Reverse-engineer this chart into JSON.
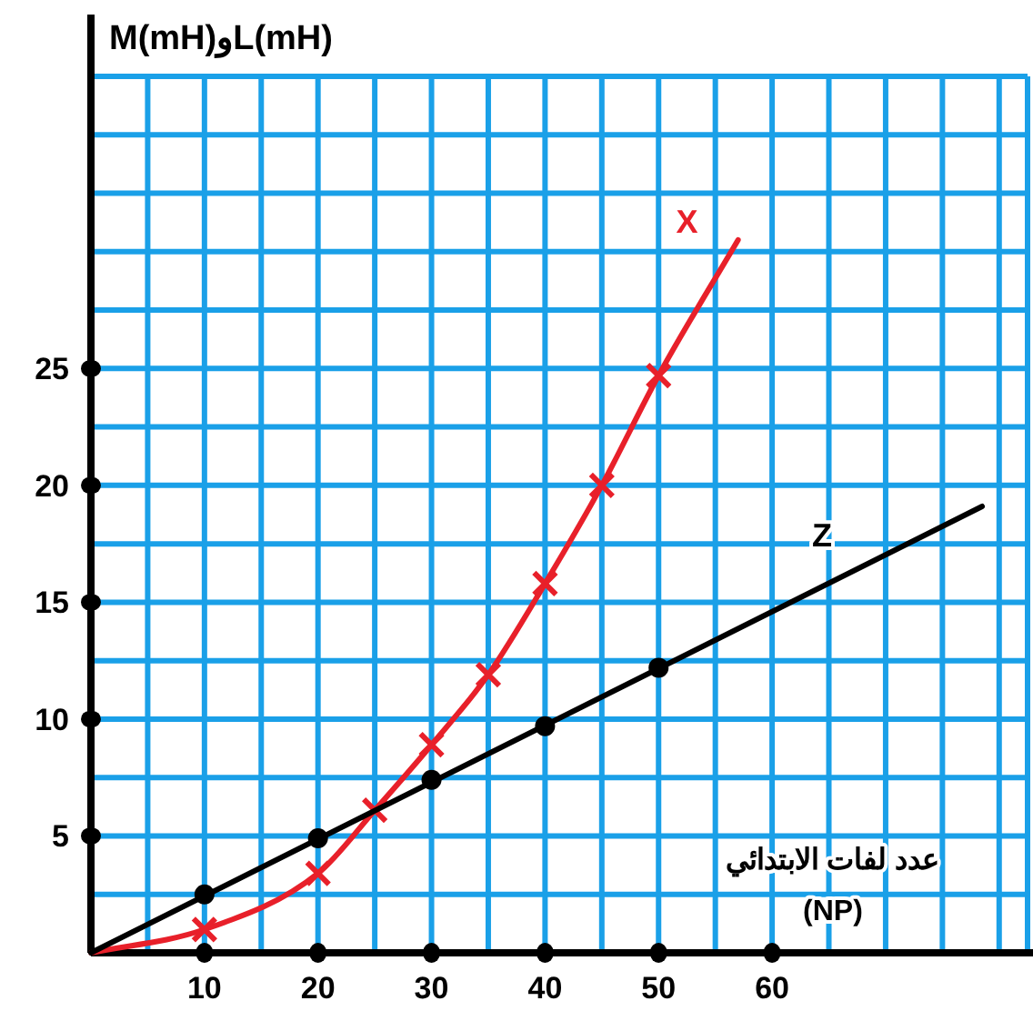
{
  "chart_data": {
    "type": "line",
    "ylabel": "M(mH)وL(mH)",
    "xlabel": "عدد لفات الابتدائي\n(NP)",
    "xlim": [
      0,
      82.5
    ],
    "ylim": [
      0,
      37.5
    ],
    "xticks": [
      {
        "value": 5,
        "label": null
      },
      10,
      {
        "value": 15,
        "label": null
      },
      20,
      {
        "value": 25,
        "label": null
      },
      30,
      {
        "value": 35,
        "label": null
      },
      40,
      {
        "value": 45,
        "label": null
      },
      50,
      {
        "value": 55,
        "label": null
      },
      60,
      {
        "value": 65,
        "label": null
      },
      {
        "value": 70,
        "label": null
      },
      {
        "value": 75,
        "label": null
      },
      {
        "value": 80,
        "label": null
      }
    ],
    "yticks": [
      {
        "value": 2.5,
        "label": null
      },
      5,
      {
        "value": 7.5,
        "label": null
      },
      10,
      {
        "value": 12.5,
        "label": null
      },
      15,
      {
        "value": 17.5,
        "label": null
      },
      20,
      {
        "value": 22.5,
        "label": null
      },
      25,
      {
        "value": 27.5,
        "label": null
      },
      {
        "value": 30,
        "label": null
      },
      {
        "value": 32.5,
        "label": null
      },
      {
        "value": 35,
        "label": null
      }
    ],
    "grid": true,
    "series": [
      {
        "name": "X",
        "color": "#e8202a",
        "marker": "none",
        "x": [
          0,
          10,
          20,
          25,
          30,
          35,
          40,
          45,
          50,
          57
        ],
        "values": [
          0,
          1,
          3.4,
          6.1,
          8.9,
          11.9,
          15.8,
          20,
          24.7,
          30.5
        ]
      },
      {
        "type": "scatter",
        "color": "#e8202a",
        "marker": "cross",
        "x": [
          10,
          20,
          25,
          30,
          35,
          40,
          45,
          50
        ],
        "values": [
          1,
          3.4,
          6.1,
          8.9,
          11.9,
          15.8,
          20,
          24.7
        ]
      },
      {
        "name": "Z",
        "color": "#000000",
        "marker": "none",
        "x": [
          0,
          78.5
        ],
        "values": [
          0,
          19.1
        ]
      },
      {
        "type": "scatter",
        "color": "#000000",
        "marker": "circle",
        "x": [
          10,
          20,
          30,
          40,
          50
        ],
        "values": [
          2.5,
          4.9,
          7.4,
          9.7,
          12.2
        ]
      }
    ]
  }
}
